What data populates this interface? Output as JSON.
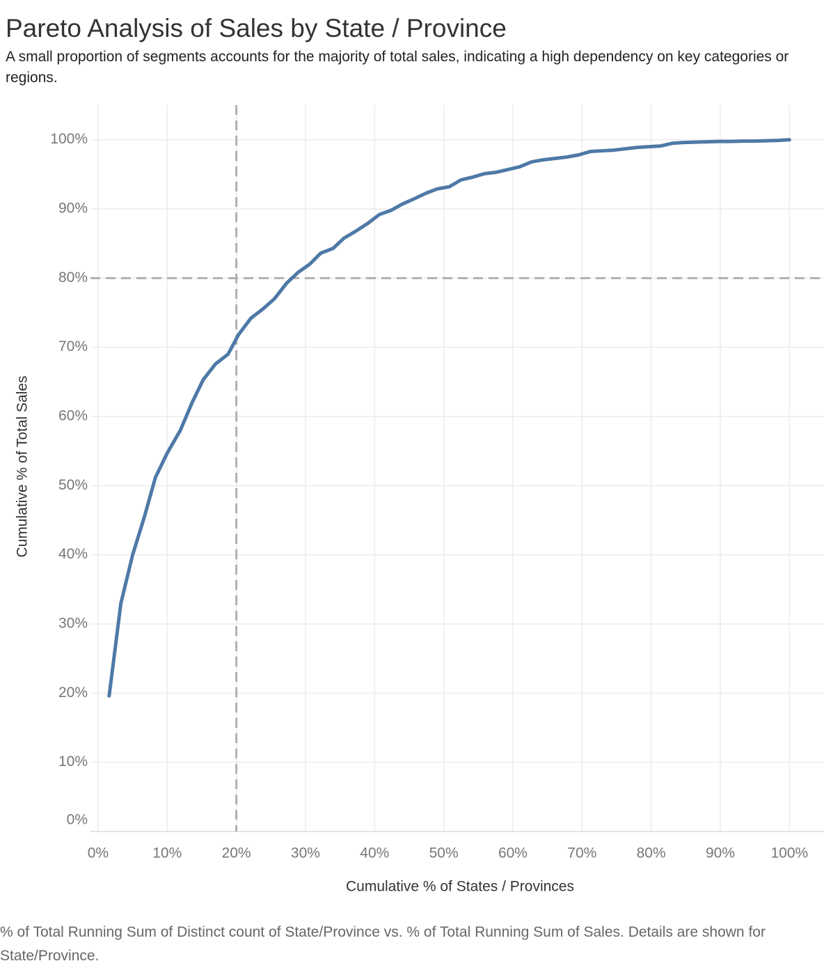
{
  "chart_data": {
    "type": "line",
    "title": "Pareto Analysis of Sales by State / Province",
    "subtitle": "A  small proportion of segments accounts for the majority of total sales, indicating a high dependency on key categories or regions.",
    "x_label": "Cumulative % of States / Provinces",
    "y_label": "Cumulative % of Total Sales",
    "caption": "% of Total Running Sum of Distinct count of State/Province vs. % of Total Running Sum of Sales.  Details are shown for State/Province.",
    "color": "#4e79a7",
    "x": [
      1.6,
      3.3,
      5,
      6.7,
      8.3,
      10,
      11.9,
      13.6,
      15.2,
      17,
      18.8,
      20.3,
      22.1,
      23.8,
      25.5,
      27.3,
      28.9,
      30.6,
      32.2,
      34,
      35.6,
      37.3,
      39,
      40.7,
      42.4,
      44,
      45.8,
      47.5,
      49.1,
      50.8,
      52.5,
      54.2,
      55.9,
      57.6,
      59.3,
      61,
      62.7,
      64.4,
      66.1,
      67.8,
      69.5,
      71.2,
      72.9,
      74.6,
      76.3,
      78,
      79.7,
      81.4,
      83.1,
      84.7,
      86.4,
      88.1,
      89.8,
      91.5,
      93.2,
      94.9,
      96.6,
      98.3,
      100
    ],
    "values": [
      19.6,
      33,
      40,
      45.5,
      51.2,
      54.7,
      58,
      62,
      65.3,
      67.6,
      69,
      71.8,
      74.2,
      75.5,
      77,
      79.3,
      80.8,
      82,
      83.6,
      84.3,
      85.8,
      86.8,
      87.9,
      89.2,
      89.8,
      90.7,
      91.5,
      92.3,
      92.9,
      93.2,
      94.2,
      94.6,
      95.1,
      95.3,
      95.7,
      96.1,
      96.8,
      97.1,
      97.3,
      97.5,
      97.8,
      98.3,
      98.4,
      98.5,
      98.7,
      98.9,
      99.0,
      99.1,
      99.5,
      99.6,
      99.65,
      99.7,
      99.75,
      99.75,
      99.8,
      99.8,
      99.85,
      99.9,
      100
    ],
    "xlim": [
      -1.1,
      105
    ],
    "ylim": [
      0,
      105
    ],
    "xticks": [
      {
        "value": 0,
        "label": "0%"
      },
      {
        "value": 10,
        "label": "10%"
      },
      {
        "value": 20,
        "label": "20%"
      },
      {
        "value": 30,
        "label": "30%"
      },
      {
        "value": 40,
        "label": "40%"
      },
      {
        "value": 50,
        "label": "50%"
      },
      {
        "value": 60,
        "label": "60%"
      },
      {
        "value": 70,
        "label": "70%"
      },
      {
        "value": 80,
        "label": "80%"
      },
      {
        "value": 90,
        "label": "90%"
      },
      {
        "value": 100,
        "label": "100%"
      }
    ],
    "yticks": [
      {
        "value": 0,
        "label": "0%"
      },
      {
        "value": 10,
        "label": "10%"
      },
      {
        "value": 20,
        "label": "20%"
      },
      {
        "value": 30,
        "label": "30%"
      },
      {
        "value": 40,
        "label": "40%"
      },
      {
        "value": 50,
        "label": "50%"
      },
      {
        "value": 60,
        "label": "60%"
      },
      {
        "value": 70,
        "label": "70%"
      },
      {
        "value": 80,
        "label": "80%"
      },
      {
        "value": 90,
        "label": "90%"
      },
      {
        "value": 100,
        "label": "100%"
      }
    ],
    "reference_lines": {
      "x": 20,
      "y": 80,
      "color": "#b0b0b0"
    },
    "grid": true
  }
}
